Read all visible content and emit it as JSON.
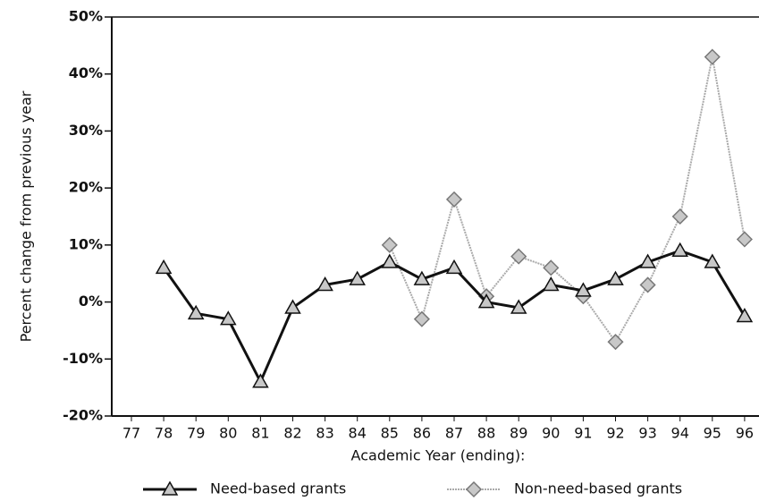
{
  "chart_data": {
    "type": "line",
    "xlabel": "Academic Year (ending):",
    "ylabel": "Percent change from previous year",
    "categories": [
      "77",
      "78",
      "79",
      "80",
      "81",
      "82",
      "83",
      "84",
      "85",
      "86",
      "87",
      "88",
      "89",
      "90",
      "91",
      "92",
      "93",
      "94",
      "95",
      "96"
    ],
    "series": [
      {
        "name": "Need-based grants",
        "color": "#111111",
        "marker": "triangle",
        "values": [
          null,
          6,
          -2,
          -3,
          -14,
          -1,
          3,
          4,
          7,
          4,
          6,
          0,
          -1,
          3,
          2,
          4,
          7,
          9,
          7,
          -2.5
        ]
      },
      {
        "name": "Non-need-based grants",
        "color": "#aaaaaa",
        "marker": "diamond",
        "values": [
          null,
          null,
          null,
          null,
          null,
          null,
          null,
          null,
          10,
          -3,
          18,
          1,
          8,
          6,
          1,
          -7,
          3,
          15,
          43,
          11
        ]
      }
    ],
    "ylim": [
      -20,
      50
    ],
    "yticks": [
      {
        "value": -20,
        "label": "-20%"
      },
      {
        "value": -10,
        "label": "-10%"
      },
      {
        "value": 0,
        "label": "0%"
      },
      {
        "value": 10,
        "label": "10%"
      },
      {
        "value": 20,
        "label": "20%"
      },
      {
        "value": 30,
        "label": "30%"
      },
      {
        "value": 40,
        "label": "40%"
      },
      {
        "value": 50,
        "label": "50%"
      }
    ],
    "legend": "bottom"
  }
}
